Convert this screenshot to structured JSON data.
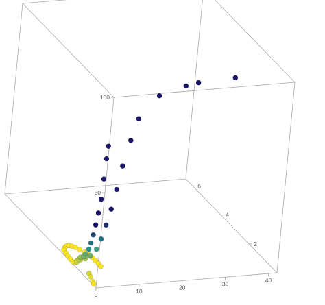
{
  "chart_data": {
    "type": "scatter",
    "projection": "3d",
    "box": "on",
    "grid": "off",
    "legend": "none",
    "title": "",
    "xlabel": "",
    "ylabel": "",
    "zlabel": "",
    "xlim": [
      0,
      42
    ],
    "ylim": [
      0,
      6.5
    ],
    "zlim": [
      0,
      100
    ],
    "x_ticks": [
      "0",
      "10",
      "20",
      "30",
      "40"
    ],
    "y_ticks": [
      "2",
      "4",
      "6"
    ],
    "z_ticks": [
      "50",
      "100"
    ],
    "color_scale": {
      "low": "#fde725",
      "mid": "#21918c",
      "high": "#1a1464"
    },
    "points": [
      {
        "x": 0,
        "y": 1.5,
        "z": 2
      },
      {
        "x": 0,
        "y": 1.4,
        "z": 3
      },
      {
        "x": 0,
        "y": 1.3,
        "z": 5
      },
      {
        "x": 0,
        "y": 1.2,
        "z": 7
      },
      {
        "x": 0,
        "y": 1.0,
        "z": 9
      },
      {
        "x": 0,
        "y": 0.9,
        "z": 11
      },
      {
        "x": 0,
        "y": 0.7,
        "z": 15
      },
      {
        "x": 0,
        "y": 0.6,
        "z": 19
      },
      {
        "x": 0,
        "y": 0.5,
        "z": 24
      },
      {
        "x": 0,
        "y": 0.4,
        "z": 30
      },
      {
        "x": 0,
        "y": 0.3,
        "z": 37
      },
      {
        "x": 0,
        "y": 0.2,
        "z": 45
      },
      {
        "x": 0,
        "y": 0.15,
        "z": 56
      },
      {
        "x": 0,
        "y": 0.1,
        "z": 67
      },
      {
        "x": 0,
        "y": 0.05,
        "z": 74
      },
      {
        "x": 0.4,
        "y": 1.5,
        "z": 3
      },
      {
        "x": 0.4,
        "y": 1.3,
        "z": 6
      },
      {
        "x": 0.8,
        "y": 1.4,
        "z": 4
      },
      {
        "x": 0.8,
        "y": 1.1,
        "z": 8
      },
      {
        "x": 1.2,
        "y": 1.2,
        "z": 6
      },
      {
        "x": 1.2,
        "y": 0.9,
        "z": 10
      },
      {
        "x": 2,
        "y": 1.1,
        "z": 8
      },
      {
        "x": 2.5,
        "y": 0.9,
        "z": 13
      },
      {
        "x": 3,
        "y": 0.8,
        "z": 19
      },
      {
        "x": 3.5,
        "y": 0.7,
        "z": 27
      },
      {
        "x": 4,
        "y": 0.6,
        "z": 36
      },
      {
        "x": 4.5,
        "y": 0.5,
        "z": 47
      },
      {
        "x": 5,
        "y": 0.4,
        "z": 60
      },
      {
        "x": 6,
        "y": 0.3,
        "z": 74
      },
      {
        "x": 7,
        "y": 0.2,
        "z": 86
      },
      {
        "x": 11,
        "y": 0.1,
        "z": 98
      },
      {
        "x": 17,
        "y": 0.1,
        "z": 102
      },
      {
        "x": 19.5,
        "y": 0.0,
        "z": 104
      },
      {
        "x": 28,
        "y": 0.0,
        "z": 105
      },
      {
        "x": 1,
        "y": 2.6,
        "z": 0
      },
      {
        "x": 1.5,
        "y": 2.7,
        "z": 0
      },
      {
        "x": 2,
        "y": 2.8,
        "z": 0
      },
      {
        "x": 2.5,
        "y": 2.85,
        "z": 0
      },
      {
        "x": 3,
        "y": 2.85,
        "z": 0
      },
      {
        "x": 3.5,
        "y": 2.8,
        "z": 0
      },
      {
        "x": 4,
        "y": 2.7,
        "z": 0
      },
      {
        "x": 4.5,
        "y": 2.55,
        "z": 0
      },
      {
        "x": 5,
        "y": 2.35,
        "z": 0
      },
      {
        "x": 5.3,
        "y": 2.15,
        "z": 0
      },
      {
        "x": 5.5,
        "y": 1.95,
        "z": 0
      },
      {
        "x": 5.6,
        "y": 1.75,
        "z": 0
      },
      {
        "x": 5.6,
        "y": 1.55,
        "z": 0
      },
      {
        "x": 5.5,
        "y": 1.35,
        "z": 0
      },
      {
        "x": 0.8,
        "y": 2.4,
        "z": 0
      },
      {
        "x": 0.6,
        "y": 2.2,
        "z": 0
      },
      {
        "x": 0.5,
        "y": 2.0,
        "z": 0
      },
      {
        "x": 0.5,
        "y": 1.8,
        "z": 0
      },
      {
        "x": 0.3,
        "y": 0.5,
        "z": 2
      },
      {
        "x": 0.2,
        "y": 0.3,
        "z": 1
      },
      {
        "x": 0.1,
        "y": 0.2,
        "z": 0.5
      },
      {
        "x": 0.2,
        "y": 0.6,
        "z": 3
      }
    ]
  }
}
